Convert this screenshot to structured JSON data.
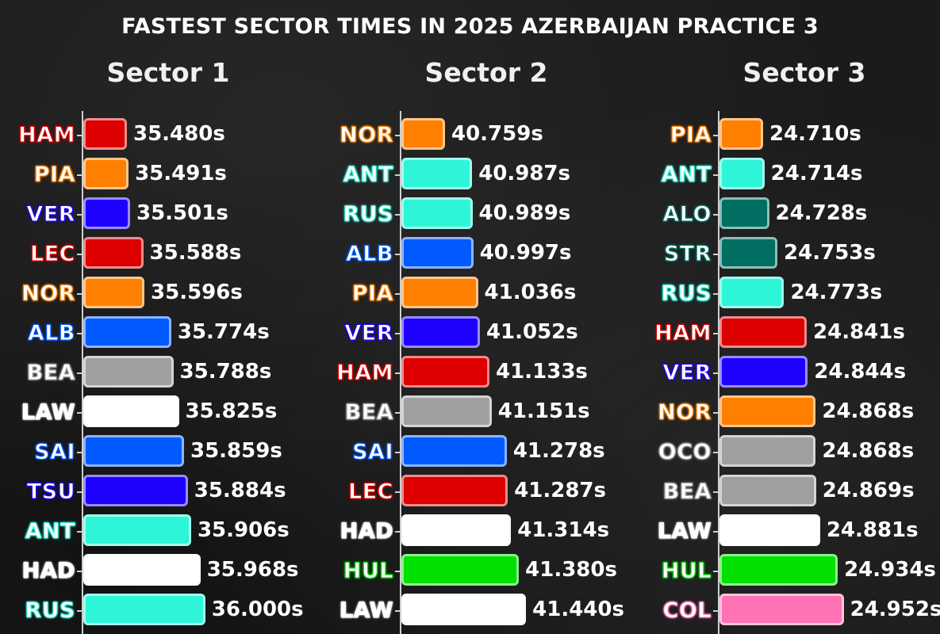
{
  "title": "FASTEST SECTOR TIMES IN 2025 AZERBAIJAN PRACTICE 3",
  "chart_data": [
    {
      "type": "bar",
      "title": "Sector 1",
      "categories": [
        "HAM",
        "PIA",
        "VER",
        "LEC",
        "NOR",
        "ALB",
        "BEA",
        "LAW",
        "SAI",
        "TSU",
        "ANT",
        "HAD",
        "RUS"
      ],
      "values": [
        35.48,
        35.491,
        35.501,
        35.588,
        35.596,
        35.774,
        35.788,
        35.825,
        35.859,
        35.884,
        35.906,
        35.968,
        36.0
      ],
      "labels": [
        "35.480s",
        "35.491s",
        "35.501s",
        "35.588s",
        "35.596s",
        "35.774s",
        "35.788s",
        "35.825s",
        "35.859s",
        "35.884s",
        "35.906s",
        "35.968s",
        "36.000s"
      ],
      "colors": [
        "#dc0000",
        "#ff8000",
        "#1e00ff",
        "#dc0000",
        "#ff8000",
        "#005aff",
        "#a0a0a0",
        "#ffffff",
        "#005aff",
        "#1e00ff",
        "#2ff5d8",
        "#ffffff",
        "#2ff5d8"
      ]
    },
    {
      "type": "bar",
      "title": "Sector 2",
      "categories": [
        "NOR",
        "ANT",
        "RUS",
        "ALB",
        "PIA",
        "VER",
        "HAM",
        "BEA",
        "SAI",
        "LEC",
        "HAD",
        "HUL",
        "LAW"
      ],
      "values": [
        40.759,
        40.987,
        40.989,
        40.997,
        41.036,
        41.052,
        41.133,
        41.151,
        41.278,
        41.287,
        41.314,
        41.38,
        41.44
      ],
      "labels": [
        "40.759s",
        "40.987s",
        "40.989s",
        "40.997s",
        "41.036s",
        "41.052s",
        "41.133s",
        "41.151s",
        "41.278s",
        "41.287s",
        "41.314s",
        "41.380s",
        "41.440s"
      ],
      "colors": [
        "#ff8000",
        "#2ff5d8",
        "#2ff5d8",
        "#005aff",
        "#ff8000",
        "#1e00ff",
        "#dc0000",
        "#a0a0a0",
        "#005aff",
        "#dc0000",
        "#ffffff",
        "#00e000",
        "#ffffff"
      ]
    },
    {
      "type": "bar",
      "title": "Sector 3",
      "categories": [
        "PIA",
        "ANT",
        "ALO",
        "STR",
        "RUS",
        "HAM",
        "VER",
        "NOR",
        "OCO",
        "BEA",
        "LAW",
        "HUL",
        "COL"
      ],
      "values": [
        24.71,
        24.714,
        24.728,
        24.753,
        24.773,
        24.841,
        24.844,
        24.868,
        24.868,
        24.869,
        24.881,
        24.934,
        24.952
      ],
      "labels": [
        "24.710s",
        "24.714s",
        "24.728s",
        "24.753s",
        "24.773s",
        "24.841s",
        "24.844s",
        "24.868s",
        "24.868s",
        "24.869s",
        "24.881s",
        "24.934s",
        "24.952s"
      ],
      "colors": [
        "#ff8000",
        "#2ff5d8",
        "#006f62",
        "#006f62",
        "#2ff5d8",
        "#dc0000",
        "#1e00ff",
        "#ff8000",
        "#a0a0a0",
        "#a0a0a0",
        "#ffffff",
        "#00e000",
        "#ff73b4"
      ]
    }
  ]
}
